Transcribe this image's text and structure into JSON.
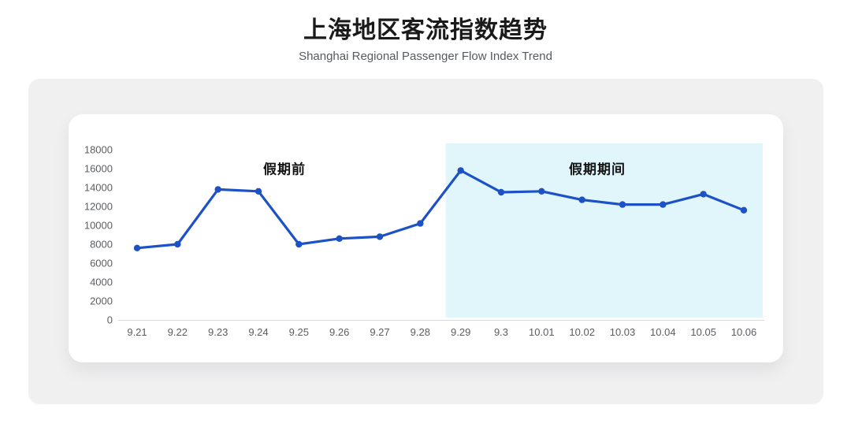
{
  "page": {
    "title": "上海地区客流指数趋势",
    "subtitle": "Shanghai Regional Passenger Flow Index Trend"
  },
  "chart_data": {
    "type": "line",
    "title": "上海地区客流指数趋势",
    "subtitle": "Shanghai Regional Passenger Flow Index Trend",
    "categories": [
      "9.21",
      "9.22",
      "9.23",
      "9.24",
      "9.25",
      "9.26",
      "9.27",
      "9.28",
      "9.29",
      "9.3",
      "10.01",
      "10.02",
      "10.03",
      "10.04",
      "10.05",
      "10.06"
    ],
    "values": [
      7600,
      8000,
      13800,
      13600,
      8000,
      8600,
      8800,
      10200,
      15800,
      13500,
      13600,
      12700,
      12200,
      12200,
      13300,
      11600
    ],
    "xlabel": "",
    "ylabel": "",
    "ylim": [
      0,
      18000
    ],
    "ytick_step": 2000,
    "ytick_labels": [
      "0",
      "2000",
      "4000",
      "6000",
      "8000",
      "10000",
      "12000",
      "14000",
      "16000",
      "18000"
    ],
    "grid": false,
    "legend": "none",
    "line_color": "#1d52c6",
    "axis_line_color": "#d9d9d9",
    "tick_text_color": "#5a5d61",
    "annotations": [
      {
        "label": "假期前",
        "span": [
          "9.21",
          "9.28"
        ],
        "highlight_color": ""
      },
      {
        "label": "假期期间",
        "span": [
          "9.29",
          "10.06"
        ],
        "highlight_color": "#e1f6fb"
      }
    ]
  }
}
